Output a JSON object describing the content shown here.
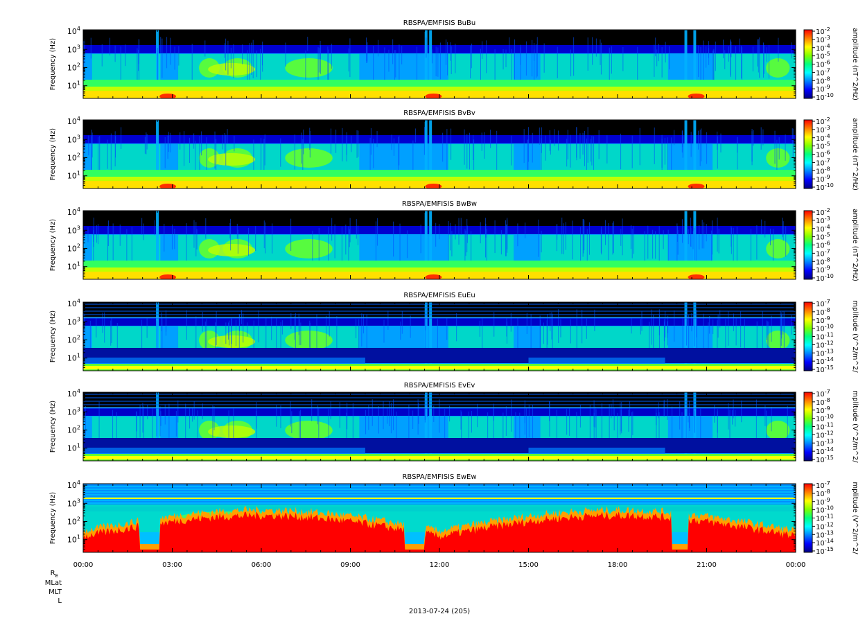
{
  "chart_data": {
    "type": "heatmap",
    "x_axis": {
      "tick_labels": [
        "00:00",
        "03:00",
        "06:00",
        "09:00",
        "12:00",
        "15:00",
        "18:00",
        "21:00",
        "00:00"
      ],
      "range_hours": [
        0,
        24
      ],
      "major_tick_hours": [
        0,
        3,
        6,
        9,
        12,
        15,
        18,
        21,
        24
      ],
      "minor_ticks_per_major": 6,
      "ephemeris_labels": [
        "R_E",
        "MLat",
        "MLT",
        "L"
      ],
      "date_label": "2013-07-24 (205)"
    },
    "colorscale": [
      "#000080",
      "#0000ff",
      "#0080ff",
      "#00ffff",
      "#00ff80",
      "#80ff00",
      "#ffff00",
      "#ff8000",
      "#ff0000"
    ],
    "panels": [
      {
        "title": "RBSPA/EMFISIS  BuBu",
        "ylabel": "Frequency (Hz)",
        "y_scale": "log",
        "y_range_hz": [
          2,
          12000
        ],
        "y_ticks": [
          {
            "base": "10",
            "exp": "1",
            "value": 10
          },
          {
            "base": "10",
            "exp": "2",
            "value": 100
          },
          {
            "base": "10",
            "exp": "3",
            "value": 1000
          },
          {
            "base": "10",
            "exp": "4",
            "value": 10000
          }
        ],
        "colorbar_label": "amplitude (nT^2/Hz)",
        "colorbar_ticks": [
          {
            "base": "10",
            "exp": "-2"
          },
          {
            "base": "10",
            "exp": "-3"
          },
          {
            "base": "10",
            "exp": "-4"
          },
          {
            "base": "10",
            "exp": "-5"
          },
          {
            "base": "10",
            "exp": "-6"
          },
          {
            "base": "10",
            "exp": "-7"
          },
          {
            "base": "10",
            "exp": "-8"
          },
          {
            "base": "10",
            "exp": "-9"
          },
          {
            "base": "10",
            "exp": "-10"
          }
        ],
        "colorbar_range_log": [
          -10,
          -2
        ],
        "spectrogram_style": "magnetic"
      },
      {
        "title": "RBSPA/EMFISIS  BvBv",
        "ylabel": "Frequency (Hz)",
        "y_scale": "log",
        "y_range_hz": [
          2,
          12000
        ],
        "y_ticks": [
          {
            "base": "10",
            "exp": "1",
            "value": 10
          },
          {
            "base": "10",
            "exp": "2",
            "value": 100
          },
          {
            "base": "10",
            "exp": "3",
            "value": 1000
          },
          {
            "base": "10",
            "exp": "4",
            "value": 10000
          }
        ],
        "colorbar_label": "amplitude (nT^2/Hz)",
        "colorbar_ticks": [
          {
            "base": "10",
            "exp": "-2"
          },
          {
            "base": "10",
            "exp": "-3"
          },
          {
            "base": "10",
            "exp": "-4"
          },
          {
            "base": "10",
            "exp": "-5"
          },
          {
            "base": "10",
            "exp": "-6"
          },
          {
            "base": "10",
            "exp": "-7"
          },
          {
            "base": "10",
            "exp": "-8"
          },
          {
            "base": "10",
            "exp": "-9"
          },
          {
            "base": "10",
            "exp": "-10"
          }
        ],
        "colorbar_range_log": [
          -10,
          -2
        ],
        "spectrogram_style": "magnetic"
      },
      {
        "title": "RBSPA/EMFISIS  BwBw",
        "ylabel": "Frequency (Hz)",
        "y_scale": "log",
        "y_range_hz": [
          2,
          12000
        ],
        "y_ticks": [
          {
            "base": "10",
            "exp": "1",
            "value": 10
          },
          {
            "base": "10",
            "exp": "2",
            "value": 100
          },
          {
            "base": "10",
            "exp": "3",
            "value": 1000
          },
          {
            "base": "10",
            "exp": "4",
            "value": 10000
          }
        ],
        "colorbar_label": "amplitude (nT^2/Hz)",
        "colorbar_ticks": [
          {
            "base": "10",
            "exp": "-2"
          },
          {
            "base": "10",
            "exp": "-3"
          },
          {
            "base": "10",
            "exp": "-4"
          },
          {
            "base": "10",
            "exp": "-5"
          },
          {
            "base": "10",
            "exp": "-6"
          },
          {
            "base": "10",
            "exp": "-7"
          },
          {
            "base": "10",
            "exp": "-8"
          },
          {
            "base": "10",
            "exp": "-9"
          },
          {
            "base": "10",
            "exp": "-10"
          }
        ],
        "colorbar_range_log": [
          -10,
          -2
        ],
        "spectrogram_style": "magnetic"
      },
      {
        "title": "RBSPA/EMFISIS  EuEu",
        "ylabel": "Frequency (Hz)",
        "y_scale": "log",
        "y_range_hz": [
          2,
          12000
        ],
        "y_ticks": [
          {
            "base": "10",
            "exp": "1",
            "value": 10
          },
          {
            "base": "10",
            "exp": "2",
            "value": 100
          },
          {
            "base": "10",
            "exp": "3",
            "value": 1000
          },
          {
            "base": "10",
            "exp": "4",
            "value": 10000
          }
        ],
        "colorbar_label": "mplitude (V^2/m^2/",
        "colorbar_ticks": [
          {
            "base": "10",
            "exp": "-7"
          },
          {
            "base": "10",
            "exp": "-8"
          },
          {
            "base": "10",
            "exp": "-9"
          },
          {
            "base": "10",
            "exp": "-10"
          },
          {
            "base": "10",
            "exp": "-11"
          },
          {
            "base": "10",
            "exp": "-12"
          },
          {
            "base": "10",
            "exp": "-13"
          },
          {
            "base": "10",
            "exp": "-14"
          },
          {
            "base": "10",
            "exp": "-15"
          }
        ],
        "colorbar_range_log": [
          -15,
          -7
        ],
        "spectrogram_style": "electric"
      },
      {
        "title": "RBSPA/EMFISIS  EvEv",
        "ylabel": "Frequency (Hz)",
        "y_scale": "log",
        "y_range_hz": [
          2,
          12000
        ],
        "y_ticks": [
          {
            "base": "10",
            "exp": "1",
            "value": 10
          },
          {
            "base": "10",
            "exp": "2",
            "value": 100
          },
          {
            "base": "10",
            "exp": "3",
            "value": 1000
          },
          {
            "base": "10",
            "exp": "4",
            "value": 10000
          }
        ],
        "colorbar_label": "mplitude (V^2/m^2/",
        "colorbar_ticks": [
          {
            "base": "10",
            "exp": "-7"
          },
          {
            "base": "10",
            "exp": "-8"
          },
          {
            "base": "10",
            "exp": "-9"
          },
          {
            "base": "10",
            "exp": "-10"
          },
          {
            "base": "10",
            "exp": "-11"
          },
          {
            "base": "10",
            "exp": "-12"
          },
          {
            "base": "10",
            "exp": "-13"
          },
          {
            "base": "10",
            "exp": "-14"
          },
          {
            "base": "10",
            "exp": "-15"
          }
        ],
        "colorbar_range_log": [
          -15,
          -7
        ],
        "spectrogram_style": "electric"
      },
      {
        "title": "RBSPA/EMFISIS  EwEw",
        "ylabel": "Frequency (Hz)",
        "y_scale": "log",
        "y_range_hz": [
          2,
          12000
        ],
        "y_ticks": [
          {
            "base": "10",
            "exp": "1",
            "value": 10
          },
          {
            "base": "10",
            "exp": "2",
            "value": 100
          },
          {
            "base": "10",
            "exp": "3",
            "value": 1000
          },
          {
            "base": "10",
            "exp": "4",
            "value": 10000
          }
        ],
        "colorbar_label": "mplitude (V^2/m^2/",
        "colorbar_ticks": [
          {
            "base": "10",
            "exp": "-7"
          },
          {
            "base": "10",
            "exp": "-8"
          },
          {
            "base": "10",
            "exp": "-9"
          },
          {
            "base": "10",
            "exp": "-10"
          },
          {
            "base": "10",
            "exp": "-11"
          },
          {
            "base": "10",
            "exp": "-12"
          },
          {
            "base": "10",
            "exp": "-13"
          },
          {
            "base": "10",
            "exp": "-14"
          },
          {
            "base": "10",
            "exp": "-15"
          }
        ],
        "colorbar_range_log": [
          -15,
          -7
        ],
        "spectrogram_style": "electric-axial"
      }
    ]
  }
}
